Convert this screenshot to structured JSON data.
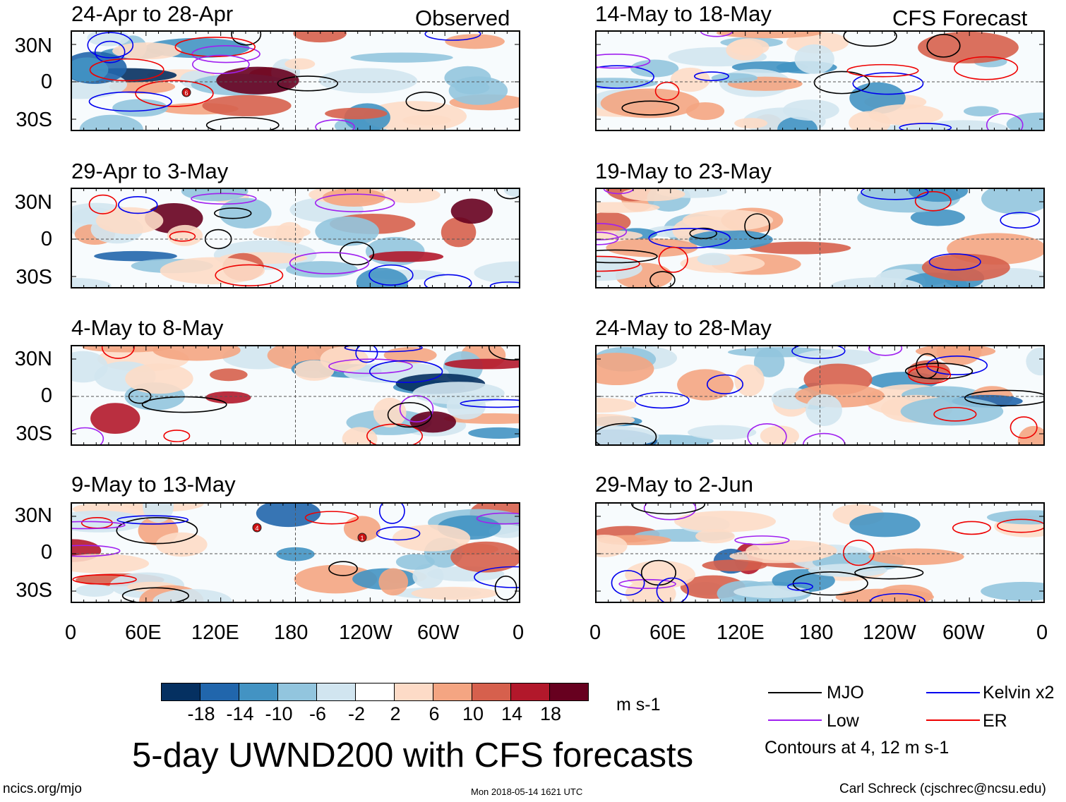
{
  "header": {
    "observed_label": "Observed",
    "forecast_label": "CFS Forecast"
  },
  "panels": {
    "left": [
      {
        "title": "24-Apr to 28-Apr"
      },
      {
        "title": "29-Apr to 3-May"
      },
      {
        "title": "4-May to 8-May"
      },
      {
        "title": "9-May to 13-May"
      }
    ],
    "right": [
      {
        "title": "14-May to 18-May"
      },
      {
        "title": "19-May to 23-May"
      },
      {
        "title": "24-May to 28-May"
      },
      {
        "title": "29-May to 2-Jun"
      }
    ]
  },
  "axes": {
    "lat_labels": [
      "30N",
      "0",
      "30S"
    ],
    "lon_labels": [
      "0",
      "60E",
      "120E",
      "180",
      "120W",
      "60W",
      "0"
    ]
  },
  "colorbar": {
    "colors": [
      "#053061",
      "#2166ac",
      "#4393c3",
      "#92c5de",
      "#d1e5f0",
      "#ffffff",
      "#fddbc7",
      "#f4a582",
      "#d6604d",
      "#b2182b",
      "#67001f"
    ],
    "labels": [
      "-18",
      "-14",
      "-10",
      "-6",
      "-2",
      "2",
      "6",
      "10",
      "14",
      "18"
    ],
    "units": "m s-1"
  },
  "legend": {
    "items": [
      {
        "label": "MJO",
        "color": "#000000"
      },
      {
        "label": "Kelvin x2",
        "color": "#0000ee"
      },
      {
        "label": "Low",
        "color": "#a020f0"
      },
      {
        "label": "ER",
        "color": "#ee0000"
      }
    ],
    "note": "Contours at 4, 12 m s-1"
  },
  "title": "5-day UWND200 with CFS forecasts",
  "footer": {
    "left": "ncics.org/mjo",
    "center": "Mon 2018-05-14 1621 UTC",
    "right": "Carl Schreck (cjschrec@ncsu.edu)"
  },
  "storm_markers": [
    {
      "panel": "observed-1",
      "label": "6"
    },
    {
      "panel": "observed-4",
      "label": "4"
    },
    {
      "panel": "observed-4",
      "label": "1"
    }
  ]
}
